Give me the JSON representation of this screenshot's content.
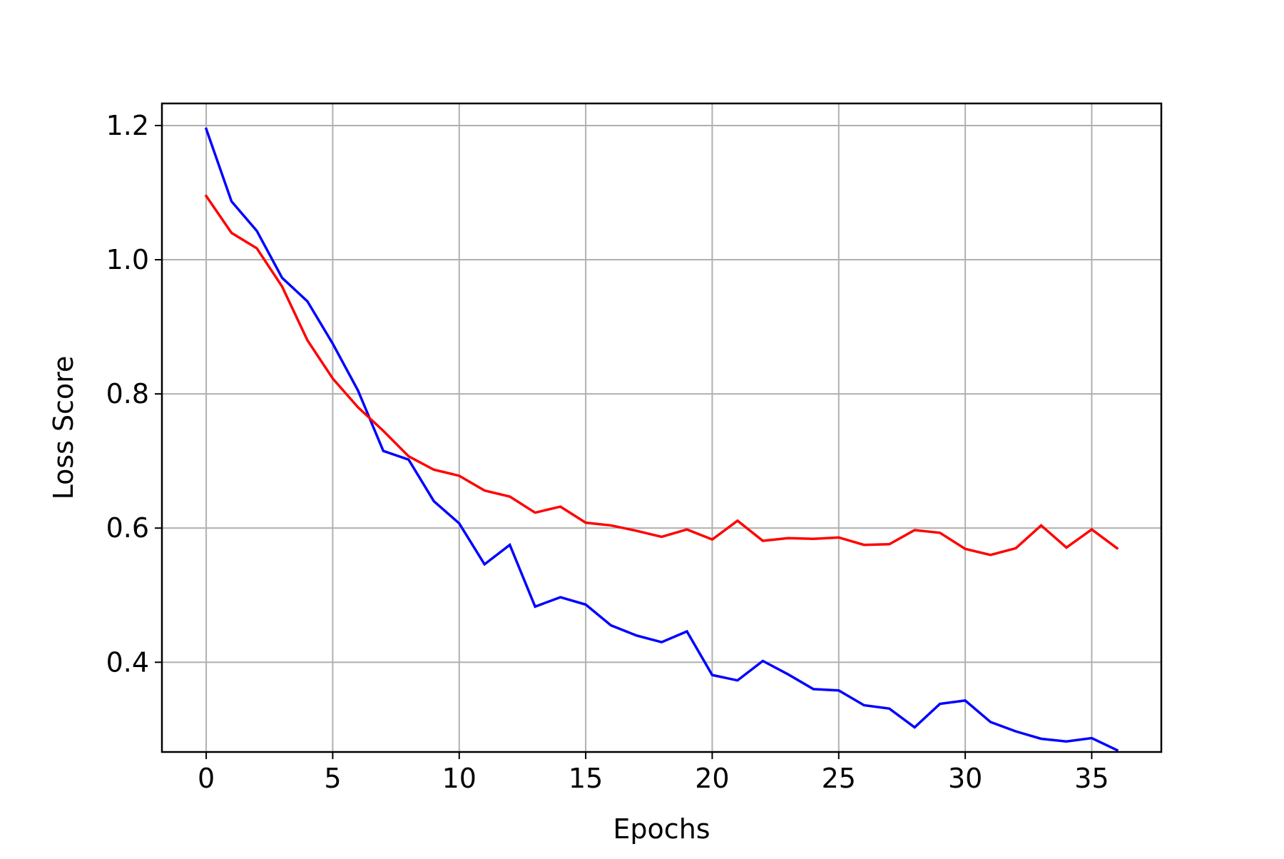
{
  "chart_data": {
    "type": "line",
    "title": "",
    "xlabel": "Epochs",
    "ylabel": "Loss Score",
    "xlim": [
      -1.75,
      37.75
    ],
    "ylim": [
      0.2663,
      1.2329
    ],
    "grid": true,
    "xticks": [
      0,
      5,
      10,
      15,
      20,
      25,
      30,
      35
    ],
    "xtick_labels": [
      "0",
      "5",
      "10",
      "15",
      "20",
      "25",
      "30",
      "35"
    ],
    "yticks": [
      0.4,
      0.6,
      0.8,
      1.0,
      1.2
    ],
    "ytick_labels": [
      "0.4",
      "0.6",
      "0.8",
      "1.0",
      "1.2"
    ],
    "x": [
      0,
      1,
      2,
      3,
      4,
      5,
      6,
      7,
      8,
      9,
      10,
      11,
      12,
      13,
      14,
      15,
      16,
      17,
      18,
      19,
      20,
      21,
      22,
      23,
      24,
      25,
      26,
      27,
      28,
      29,
      30,
      31,
      32,
      33,
      34,
      35,
      36
    ],
    "series": [
      {
        "color": "#0000ff",
        "values": [
          1.195,
          1.087,
          1.043,
          0.973,
          0.938,
          0.875,
          0.805,
          0.715,
          0.702,
          0.64,
          0.607,
          0.546,
          0.575,
          0.483,
          0.497,
          0.486,
          0.455,
          0.44,
          0.43,
          0.446,
          0.381,
          0.373,
          0.402,
          0.382,
          0.36,
          0.358,
          0.336,
          0.331,
          0.303,
          0.338,
          0.343,
          0.311,
          0.297,
          0.286,
          0.282,
          0.287,
          0.269
        ]
      },
      {
        "color": "#ff0000",
        "values": [
          1.095,
          1.04,
          1.017,
          0.96,
          0.88,
          0.823,
          0.78,
          0.745,
          0.707,
          0.687,
          0.678,
          0.656,
          0.647,
          0.623,
          0.632,
          0.608,
          0.604,
          0.596,
          0.587,
          0.598,
          0.583,
          0.611,
          0.581,
          0.585,
          0.584,
          0.586,
          0.575,
          0.576,
          0.597,
          0.593,
          0.569,
          0.56,
          0.57,
          0.604,
          0.571,
          0.598,
          0.57
        ]
      }
    ],
    "colors": {
      "grid": "#b0b0b0",
      "frame": "#000000"
    }
  }
}
